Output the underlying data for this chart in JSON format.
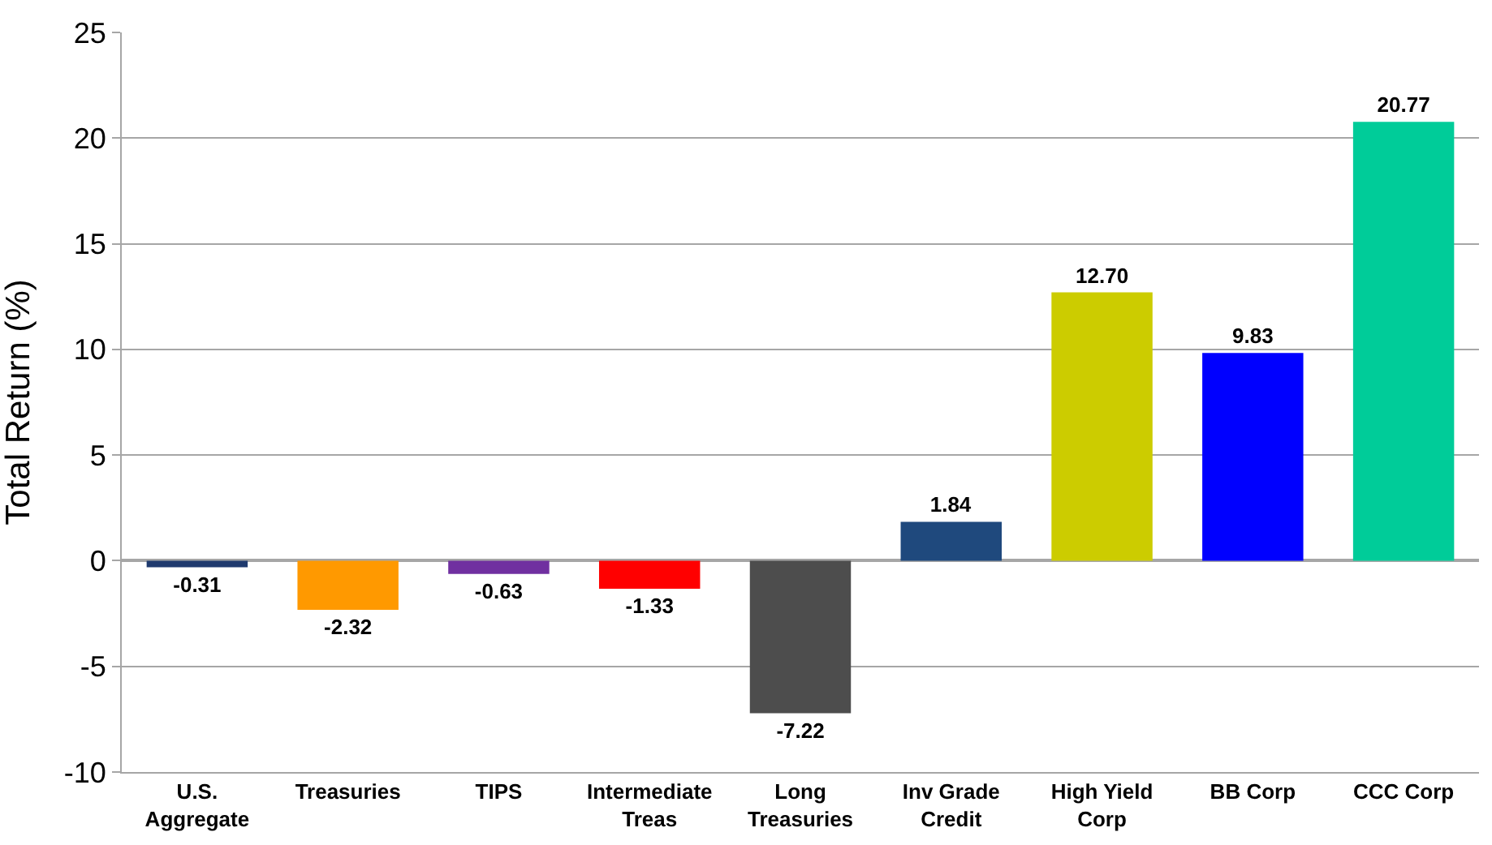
{
  "chart_data": {
    "type": "bar",
    "ylabel": "Total Return (%)",
    "categories": [
      "U.S. Aggregate",
      "Treasuries",
      "TIPS",
      "Intermediate Treas",
      "Long Treasuries",
      "Inv Grade Credit",
      "High Yield Corp",
      "BB Corp",
      "CCC Corp"
    ],
    "values": [
      -0.31,
      -2.32,
      -0.63,
      -1.33,
      -7.22,
      1.84,
      12.7,
      9.83,
      20.77
    ],
    "value_labels": [
      "-0.31",
      "-2.32",
      "-0.63",
      "-1.33",
      "-7.22",
      "1.84",
      "12.70",
      "9.83",
      "20.77"
    ],
    "colors": [
      "#1f3a6e",
      "#ff9900",
      "#7030a0",
      "#ff0000",
      "#4d4d4d",
      "#1f497d",
      "#cccc00",
      "#0000ff",
      "#00cc99"
    ],
    "ylim": [
      -10,
      25
    ],
    "yticks": [
      -10,
      -5,
      0,
      5,
      10,
      15,
      20,
      25
    ],
    "grid": "y",
    "legend": false
  }
}
